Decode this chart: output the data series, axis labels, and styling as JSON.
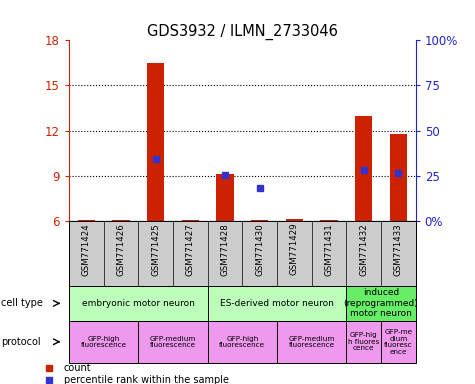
{
  "title": "GDS3932 / ILMN_2733046",
  "samples": [
    "GSM771424",
    "GSM771426",
    "GSM771425",
    "GSM771427",
    "GSM771428",
    "GSM771430",
    "GSM771429",
    "GSM771431",
    "GSM771432",
    "GSM771433"
  ],
  "bar_values": [
    6.05,
    6.05,
    16.5,
    6.05,
    9.1,
    6.05,
    6.1,
    6.05,
    13.0,
    11.8
  ],
  "percentile_values": [
    null,
    null,
    10.1,
    null,
    9.05,
    8.15,
    null,
    null,
    9.4,
    9.15
  ],
  "ylim": [
    6,
    18
  ],
  "yticks_left": [
    6,
    9,
    12,
    15,
    18
  ],
  "yticks_right": [
    0,
    25,
    50,
    75,
    100
  ],
  "bar_color": "#cc2200",
  "dot_color": "#3333cc",
  "cell_type_groups": [
    {
      "label": "embryonic motor neuron",
      "start": 0,
      "end": 4,
      "color": "#bbffbb"
    },
    {
      "label": "ES-derived motor neuron",
      "start": 4,
      "end": 8,
      "color": "#bbffbb"
    },
    {
      "label": "induced\n(reprogrammed)\nmotor neuron",
      "start": 8,
      "end": 10,
      "color": "#66ee66"
    }
  ],
  "protocol_groups": [
    {
      "label": "GFP-high\nfluorescence",
      "start": 0,
      "end": 2,
      "color": "#ee99ee"
    },
    {
      "label": "GFP-medium\nfluorescence",
      "start": 2,
      "end": 4,
      "color": "#ee99ee"
    },
    {
      "label": "GFP-high\nfluorescence",
      "start": 4,
      "end": 6,
      "color": "#ee99ee"
    },
    {
      "label": "GFP-medium\nfluorescence",
      "start": 6,
      "end": 8,
      "color": "#ee99ee"
    },
    {
      "label": "GFP-hig\nh fluores\ncence",
      "start": 8,
      "end": 9,
      "color": "#ee99ee"
    },
    {
      "label": "GFP-me\ndium\nfluoresc\nence",
      "start": 9,
      "end": 10,
      "color": "#ee99ee"
    }
  ],
  "left_ylabel_color": "#cc2200",
  "right_ylabel_color": "#2222cc",
  "sample_bg": "#cccccc",
  "legend_count_color": "#cc2200",
  "legend_dot_color": "#3333cc"
}
